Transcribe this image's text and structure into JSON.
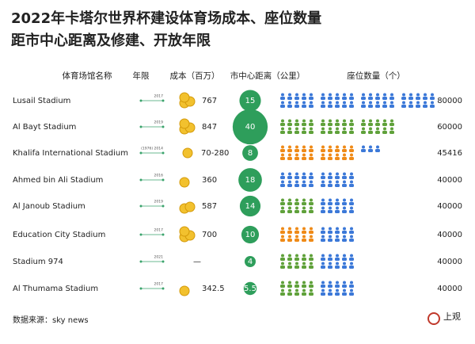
{
  "title": [
    "2022年卡塔尔世界杯建设体育场成本、座位数量",
    "距市中心距离及修建、开放年限"
  ],
  "headers": [
    "体育场馆名称",
    "年限",
    "成本（百万）",
    "市中心距离（公里）",
    "座位数量（个）"
  ],
  "rows": [
    {
      "name": "Lusail Stadium",
      "years": "2017",
      "cost": 767,
      "distance": 15,
      "seats": 80000,
      "seat_colors": [
        "#3b78d8",
        "#3b78d8",
        "#3b78d8",
        "#3b78d8"
      ]
    },
    {
      "name": "Al Bayt Stadium",
      "years": "2019",
      "cost": 847,
      "distance": 40,
      "seats": 60000,
      "seat_colors": [
        "#5fa13a",
        "#5fa13a",
        "#5fa13a"
      ]
    },
    {
      "name": "Khalifa International Stadium",
      "years": "(1976) 2014",
      "cost": "70-280",
      "distance": 8,
      "seats": 45416,
      "seat_colors": [
        "#ef8a17",
        "#ef8a17",
        "#3b78d8"
      ]
    },
    {
      "name": "Ahmed bin Ali Stadium",
      "years": "2016",
      "cost": 360,
      "distance": 18,
      "seats": 40000,
      "seat_colors": [
        "#3b78d8",
        "#3b78d8"
      ]
    },
    {
      "name": "Al Janoub Stadium",
      "years": "2019",
      "cost": 587,
      "distance": 14,
      "seats": 40000,
      "seat_colors": [
        "#5fa13a",
        "#3b78d8"
      ]
    },
    {
      "name": "Education City Stadium",
      "years": "2017",
      "cost": 700,
      "distance": 10,
      "seats": 40000,
      "seat_colors": [
        "#ef8a17",
        "#3b78d8"
      ]
    },
    {
      "name": "Stadium 974",
      "years": "2021",
      "cost": "—",
      "distance": 4,
      "seats": 40000,
      "seat_colors": [
        "#5fa13a",
        "#3b78d8"
      ]
    },
    {
      "name": "Al Thumama Stadium",
      "years": "2017",
      "cost": 342.5,
      "distance": 5.5,
      "seats": 40000,
      "seat_colors": [
        "#5fa13a",
        "#3b78d8"
      ]
    }
  ],
  "source": "数据来源：sky news",
  "logo": "上观"
}
